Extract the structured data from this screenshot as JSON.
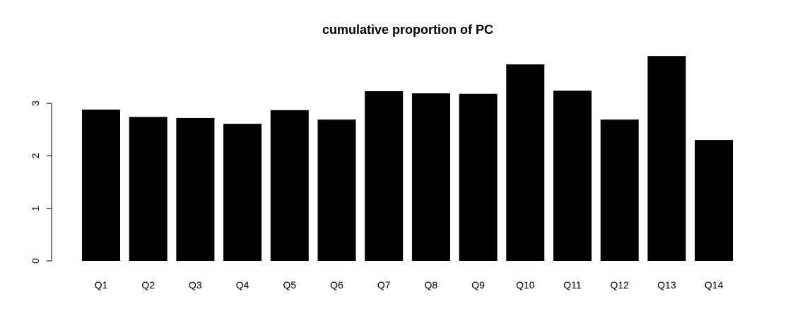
{
  "chart_data": {
    "type": "bar",
    "title": "cumulative proportion of PC",
    "xlabel": "",
    "ylabel": "",
    "categories": [
      "Q1",
      "Q2",
      "Q3",
      "Q4",
      "Q5",
      "Q6",
      "Q7",
      "Q8",
      "Q9",
      "Q10",
      "Q11",
      "Q12",
      "Q13",
      "Q14"
    ],
    "values": [
      2.88,
      2.74,
      2.72,
      2.61,
      2.87,
      2.69,
      3.23,
      3.19,
      3.18,
      3.74,
      3.24,
      2.69,
      3.9,
      2.3
    ],
    "ylim": [
      0,
      3.9
    ],
    "yticks": [
      0,
      1,
      2,
      3
    ],
    "ytick_labels": [
      "0",
      "1",
      "2",
      "3"
    ],
    "bar_color": "#000000",
    "grid": false,
    "legend": "none"
  }
}
